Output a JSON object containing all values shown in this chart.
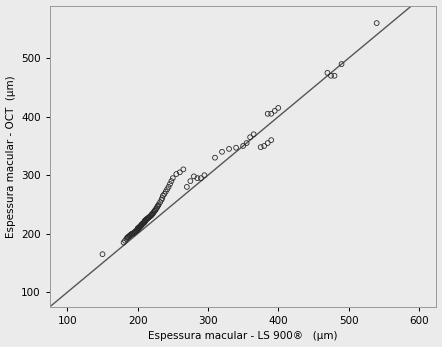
{
  "title": "",
  "xlabel": "Espessura macular - LS 900®   (μm)",
  "ylabel": "Espessura macular - OCT  (μm)",
  "xlim": [
    75,
    625
  ],
  "ylim": [
    75,
    590
  ],
  "xticks": [
    100,
    200,
    300,
    400,
    500,
    600
  ],
  "yticks": [
    100,
    200,
    300,
    400,
    500
  ],
  "background_color": "#ebebeb",
  "scatter_facecolor": "none",
  "scatter_edgecolor": "#2a2a2a",
  "scatter_size": 12,
  "line_color": "#555555",
  "line_width": 1.0,
  "scatter_x": [
    150,
    180,
    182,
    184,
    185,
    186,
    187,
    188,
    189,
    190,
    191,
    192,
    193,
    194,
    195,
    196,
    197,
    198,
    199,
    200,
    200,
    200,
    200,
    201,
    201,
    202,
    202,
    203,
    203,
    204,
    204,
    205,
    205,
    206,
    206,
    207,
    207,
    208,
    208,
    209,
    209,
    210,
    210,
    210,
    211,
    211,
    212,
    212,
    213,
    213,
    214,
    215,
    216,
    217,
    218,
    219,
    220,
    220,
    221,
    222,
    223,
    224,
    225,
    226,
    227,
    228,
    229,
    230,
    232,
    234,
    235,
    236,
    238,
    240,
    242,
    244,
    246,
    248,
    250,
    255,
    260,
    265,
    270,
    275,
    280,
    285,
    290,
    295,
    310,
    320,
    330,
    340,
    350,
    355,
    360,
    365,
    375,
    380,
    385,
    390,
    385,
    390,
    395,
    400,
    470,
    475,
    480,
    490,
    540
  ],
  "scatter_y": [
    165,
    185,
    188,
    191,
    193,
    194,
    195,
    196,
    197,
    198,
    199,
    200,
    200,
    201,
    202,
    203,
    204,
    205,
    206,
    207,
    207,
    208,
    209,
    209,
    210,
    210,
    211,
    211,
    212,
    213,
    213,
    214,
    215,
    215,
    216,
    217,
    217,
    218,
    218,
    219,
    219,
    220,
    221,
    222,
    222,
    223,
    224,
    224,
    225,
    225,
    226,
    227,
    228,
    229,
    230,
    231,
    232,
    233,
    234,
    235,
    237,
    239,
    240,
    242,
    244,
    246,
    248,
    250,
    254,
    258,
    261,
    265,
    268,
    272,
    276,
    280,
    285,
    290,
    295,
    302,
    305,
    310,
    280,
    290,
    298,
    295,
    295,
    300,
    330,
    340,
    345,
    347,
    350,
    355,
    365,
    370,
    348,
    350,
    355,
    360,
    405,
    405,
    410,
    415,
    475,
    470,
    470,
    490,
    560
  ]
}
